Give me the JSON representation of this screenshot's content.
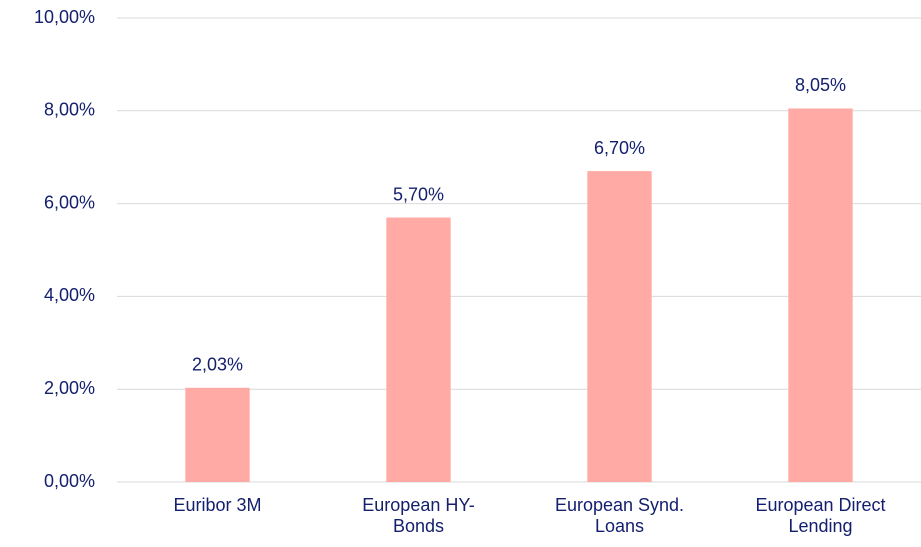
{
  "chart_data": {
    "type": "bar",
    "categories": [
      "Euribor 3M",
      "European HY-Bonds",
      "European Synd. Loans",
      "European Direct Lending"
    ],
    "values": [
      2.03,
      5.7,
      6.7,
      8.05
    ],
    "value_labels": [
      "2,03%",
      "5,70%",
      "6,70%",
      "8,05%"
    ],
    "color": "#ffaaa5",
    "ylim": [
      0,
      10
    ],
    "yticks": [
      {
        "value": 0,
        "label": "0,00%"
      },
      {
        "value": 2,
        "label": "2,00%"
      },
      {
        "value": 4,
        "label": "4,00%"
      },
      {
        "value": 6,
        "label": "6,00%"
      },
      {
        "value": 8,
        "label": "8,00%"
      },
      {
        "value": 10,
        "label": "10,00%"
      }
    ],
    "grid": true
  }
}
